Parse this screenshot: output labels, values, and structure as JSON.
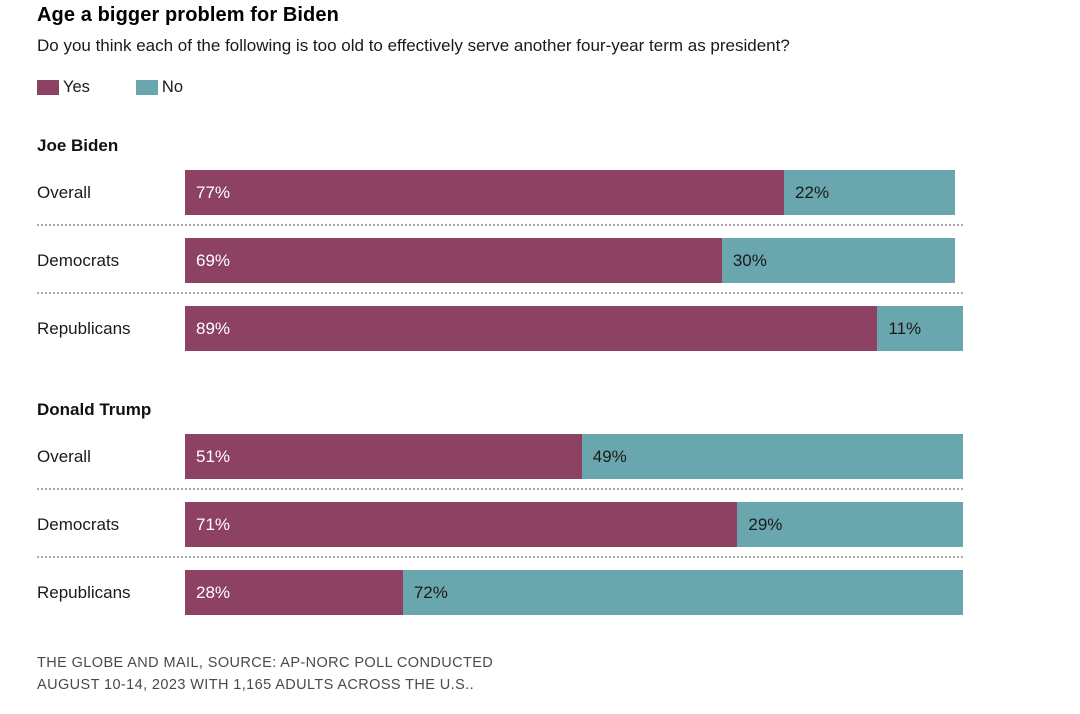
{
  "header": {
    "title": "Age a bigger problem for Biden",
    "subtitle": "Do you think each of the following is too old to effectively serve another four-year term as president?"
  },
  "chart_data": {
    "type": "bar",
    "orientation": "horizontal-stacked",
    "xlim": [
      0,
      100
    ],
    "value_suffix": "%",
    "title": "Age a bigger problem for Biden",
    "subtitle": "Do you think each of the following is too old to effectively serve another four-year term as president?",
    "legend": [
      {
        "name": "Yes",
        "color": "#8d4263",
        "value_text_color": "#ffffff"
      },
      {
        "name": "No",
        "color": "#6aa6ae",
        "value_text_color": "#1a1a1a"
      }
    ],
    "legend_position": "top-left",
    "grid": false,
    "groups": [
      {
        "heading": "Joe Biden",
        "categories": [
          "Overall",
          "Democrats",
          "Republicans"
        ],
        "series": [
          {
            "name": "Yes",
            "values": [
              77,
              69,
              89
            ]
          },
          {
            "name": "No",
            "values": [
              22,
              30,
              11
            ]
          }
        ]
      },
      {
        "heading": "Donald Trump",
        "categories": [
          "Overall",
          "Democrats",
          "Republicans"
        ],
        "series": [
          {
            "name": "Yes",
            "values": [
              51,
              71,
              28
            ]
          },
          {
            "name": "No",
            "values": [
              49,
              29,
              72
            ]
          }
        ]
      }
    ],
    "source_lines": [
      "THE GLOBE AND MAIL, SOURCE: AP-NORC POLL CONDUCTED",
      "AUGUST 10-14, 2023 WITH 1,165 ADULTS ACROSS THE U.S.."
    ]
  }
}
